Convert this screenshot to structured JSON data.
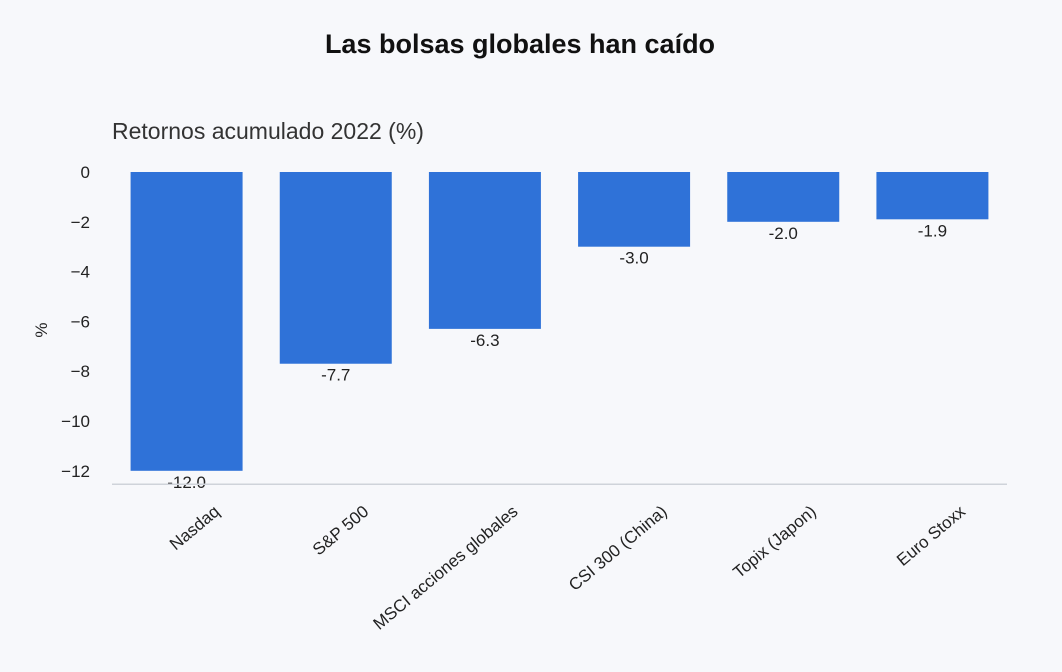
{
  "chart_data": {
    "type": "bar",
    "title": "Las bolsas globales han caído",
    "subtitle": "Retornos acumulado 2022 (%)",
    "xlabel": "",
    "ylabel": "%",
    "categories": [
      "Nasdaq",
      "S&P 500",
      "MSCI acciones globales",
      "CSI 300 (China)",
      "Topix (Japon)",
      "Euro Stoxx"
    ],
    "values": [
      -12.0,
      -7.7,
      -6.3,
      -3.0,
      -2.0,
      -1.9
    ],
    "data_labels": [
      "-12.0",
      "-7.7",
      "-6.3",
      "-3.0",
      "-2.0",
      "-1.9"
    ],
    "ylim": [
      -12.5,
      0
    ],
    "yticks": [
      0,
      -2,
      -4,
      -6,
      -8,
      -10,
      -12
    ],
    "ytick_labels": [
      "0",
      "−2",
      "−4",
      "−6",
      "−8",
      "−10",
      "−12"
    ],
    "bar_color": "#2f72d8",
    "grid": false,
    "legend": "none"
  }
}
